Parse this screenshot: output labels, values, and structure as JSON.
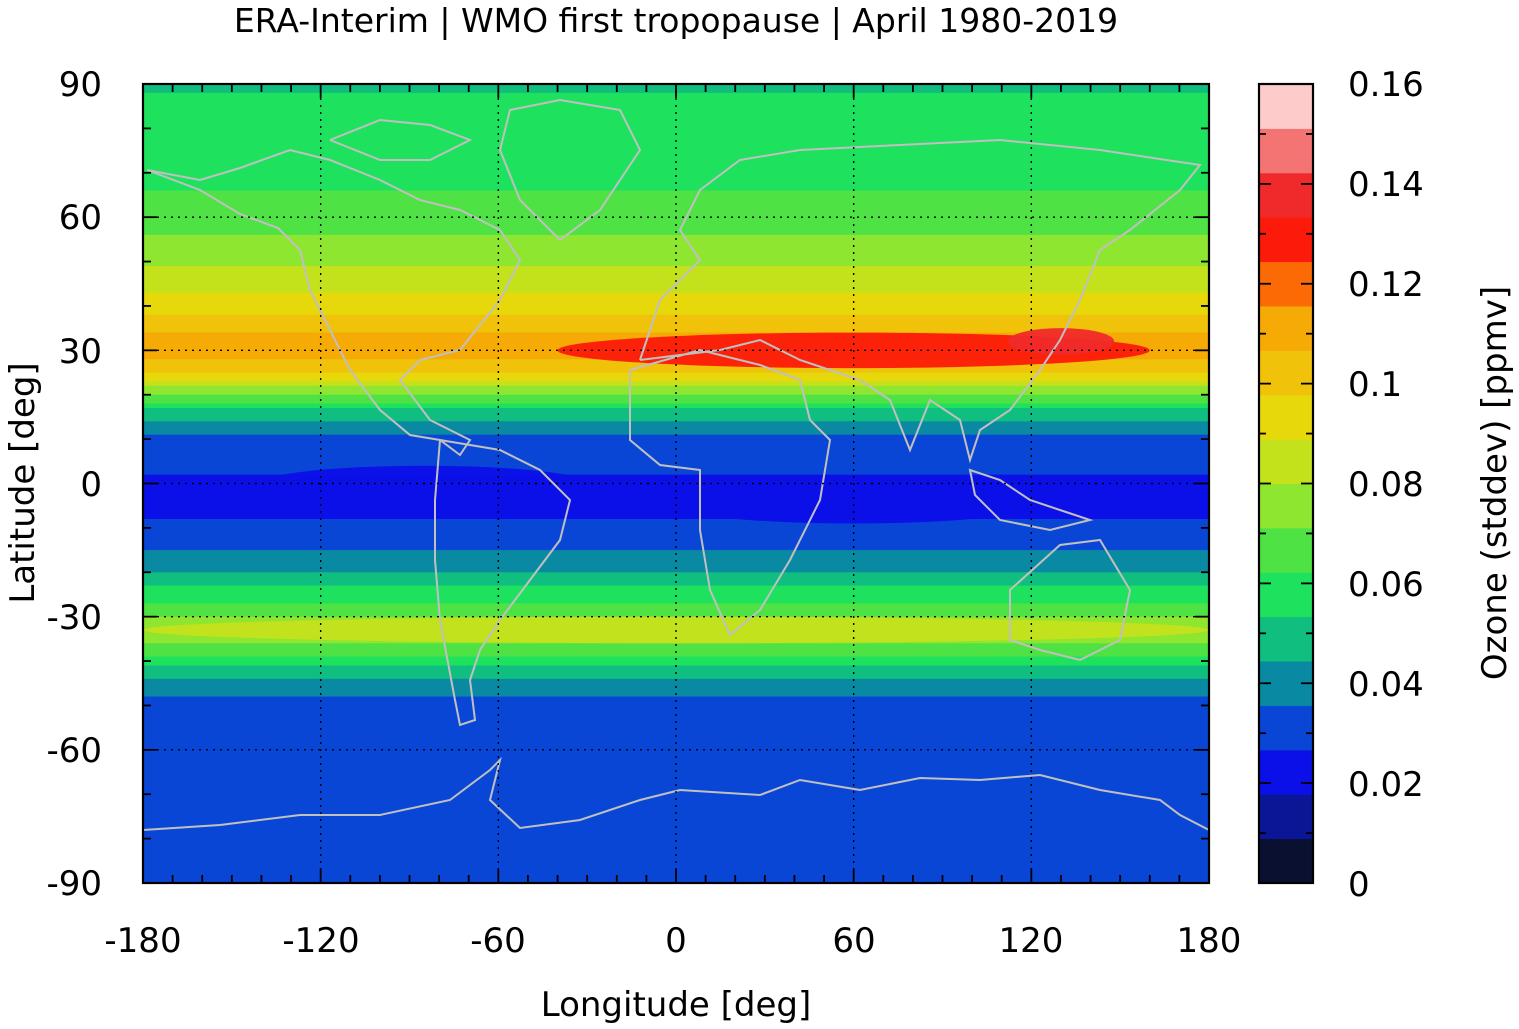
{
  "chart_data": {
    "type": "heatmap",
    "title": "ERA-Interim | WMO first tropopause | April 1980-2019",
    "xlabel": "Longitude [deg]",
    "ylabel": "Latitude [deg]",
    "colorbar_label": "Ozone (stddev) [ppmv]",
    "xlim": [
      -180,
      180
    ],
    "ylim": [
      -90,
      90
    ],
    "x_ticks": [
      "-180",
      "-120",
      "-60",
      "0",
      "60",
      "120",
      "180"
    ],
    "y_ticks": [
      "90",
      "60",
      "30",
      "0",
      "-30",
      "-60",
      "-90"
    ],
    "colorbar_range": [
      0,
      0.16
    ],
    "colorbar_ticks": [
      "0.16",
      "0.14",
      "0.12",
      "0.1",
      "0.08",
      "0.06",
      "0.04",
      "0.02",
      "0"
    ],
    "grid": true,
    "coastline_color": "#c0c0c0",
    "colors": [
      "#0a1030",
      "#0a1696",
      "#0c10e8",
      "#0a46d6",
      "#0a8aa2",
      "#10be80",
      "#1ee25e",
      "#4ee244",
      "#8ee630",
      "#c4e21c",
      "#e6d80a",
      "#f0c20a",
      "#f6aa06",
      "#fc6a06",
      "#fc1a0a",
      "#f02a2a",
      "#f47474",
      "#fecbcb"
    ],
    "latitude_profile": [
      {
        "lat": 90,
        "value": 0.053
      },
      {
        "lat": 75,
        "value": 0.056
      },
      {
        "lat": 60,
        "value": 0.066
      },
      {
        "lat": 50,
        "value": 0.078
      },
      {
        "lat": 40,
        "value": 0.094
      },
      {
        "lat": 33,
        "value": 0.108
      },
      {
        "lat": 30,
        "value": 0.115
      },
      {
        "lat": 25,
        "value": 0.098
      },
      {
        "lat": 20,
        "value": 0.07
      },
      {
        "lat": 15,
        "value": 0.046
      },
      {
        "lat": 10,
        "value": 0.032
      },
      {
        "lat": 0,
        "value": 0.025
      },
      {
        "lat": -10,
        "value": 0.027
      },
      {
        "lat": -20,
        "value": 0.044
      },
      {
        "lat": -30,
        "value": 0.072
      },
      {
        "lat": -35,
        "value": 0.076
      },
      {
        "lat": -40,
        "value": 0.058
      },
      {
        "lat": -45,
        "value": 0.042
      },
      {
        "lat": -50,
        "value": 0.032
      },
      {
        "lat": -60,
        "value": 0.03
      },
      {
        "lat": -75,
        "value": 0.03
      },
      {
        "lat": -90,
        "value": 0.03
      }
    ],
    "features": [
      {
        "label": "subtropical maximum",
        "lat": 30,
        "lon_range": [
          -40,
          160
        ],
        "value": 0.13
      },
      {
        "label": "east Asia peak",
        "lat": 32,
        "lon": 130,
        "value": 0.14
      },
      {
        "label": "tropical minimum",
        "lat": 0,
        "lon_range": [
          -140,
          -30
        ],
        "value": 0.02
      },
      {
        "label": "tropical minimum",
        "lat": -5,
        "lon_range": [
          0,
          120
        ],
        "value": 0.02
      },
      {
        "label": "southern subtropical band",
        "lat": -33,
        "value": 0.08
      }
    ]
  }
}
